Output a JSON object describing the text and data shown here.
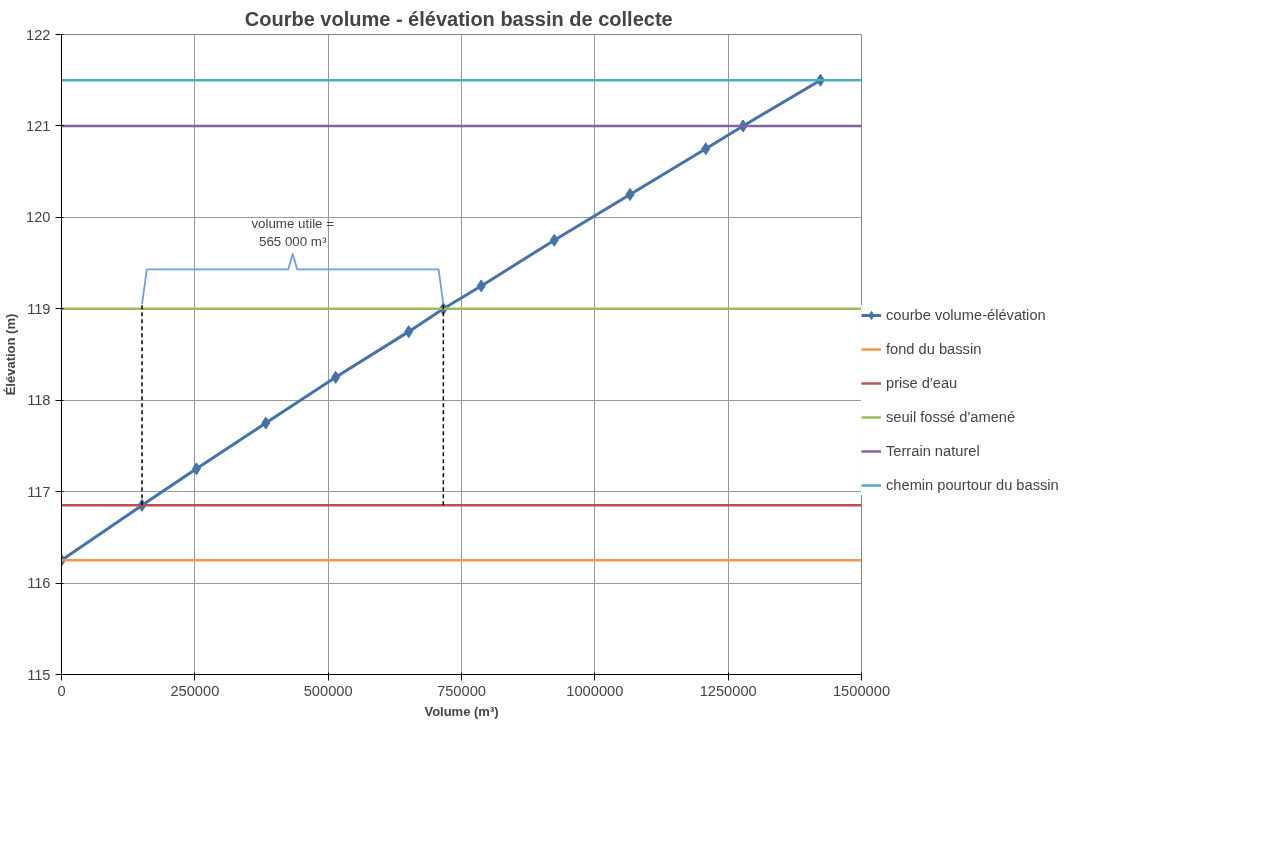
{
  "chart_data": {
    "type": "line",
    "title": "Courbe  volume - élévation bassin de collecte",
    "xlabel": "Volume (m³)",
    "ylabel": "Élévation (m)",
    "xlim": [
      0,
      1500000
    ],
    "xticks": [
      0,
      250000,
      500000,
      750000,
      1000000,
      1250000,
      1500000
    ],
    "ylim": [
      115,
      122
    ],
    "yticks": [
      115,
      116,
      117,
      118,
      119,
      120,
      121,
      122
    ],
    "grid": true,
    "legend": "right",
    "series": [
      {
        "name": "courbe volume-élévation",
        "color": "#4572a7",
        "marker": "diamond",
        "x": [
          0,
          151000,
          253000,
          383000,
          514000,
          651000,
          716000,
          787000,
          924000,
          1066000,
          1208000,
          1278000,
          1423000
        ],
        "values": [
          116.25,
          116.85,
          117.25,
          117.75,
          118.25,
          118.75,
          119,
          119.25,
          119.75,
          120.25,
          120.75,
          121,
          121.5
        ]
      },
      {
        "name": "fond du bassin",
        "color": "#f79646",
        "marker": "none",
        "x": [
          0,
          1500000
        ],
        "values": [
          116.25,
          116.25
        ]
      },
      {
        "name": "prise d'eau",
        "color": "#c0504d",
        "marker": "none",
        "x": [
          0,
          1500000
        ],
        "values": [
          116.85,
          116.85
        ]
      },
      {
        "name": "seuil fossé d'amené",
        "color": "#9bbb59",
        "marker": "none",
        "x": [
          0,
          1500000
        ],
        "values": [
          119,
          119
        ]
      },
      {
        "name": "Terrain naturel",
        "color": "#8064a2",
        "marker": "none",
        "x": [
          0,
          1500000
        ],
        "values": [
          121,
          121
        ]
      },
      {
        "name": "chemin pourtour du bassin",
        "color": "#4bacc6",
        "marker": "none",
        "x": [
          0,
          1500000
        ],
        "values": [
          121.5,
          121.5
        ]
      },
      {
        "color": "#000000",
        "marker": "none",
        "line_style": "dashed",
        "x": [
          151000,
          151000
        ],
        "values": [
          116.85,
          119.05
        ]
      },
      {
        "color": "#000000",
        "marker": "none",
        "line_style": "dashed",
        "x": [
          716000,
          716000
        ],
        "values": [
          116.85,
          119.05
        ]
      },
      {
        "color": "#6fa0dc",
        "marker": "none",
        "x": [
          151000,
          160000,
          425000,
          433500,
          442000,
          707000,
          716000
        ],
        "values": [
          119.05,
          119.43,
          119.43,
          119.6,
          119.43,
          119.43,
          119.05
        ]
      }
    ],
    "annotations": [
      "volume utile =\n565 000 m³"
    ]
  }
}
